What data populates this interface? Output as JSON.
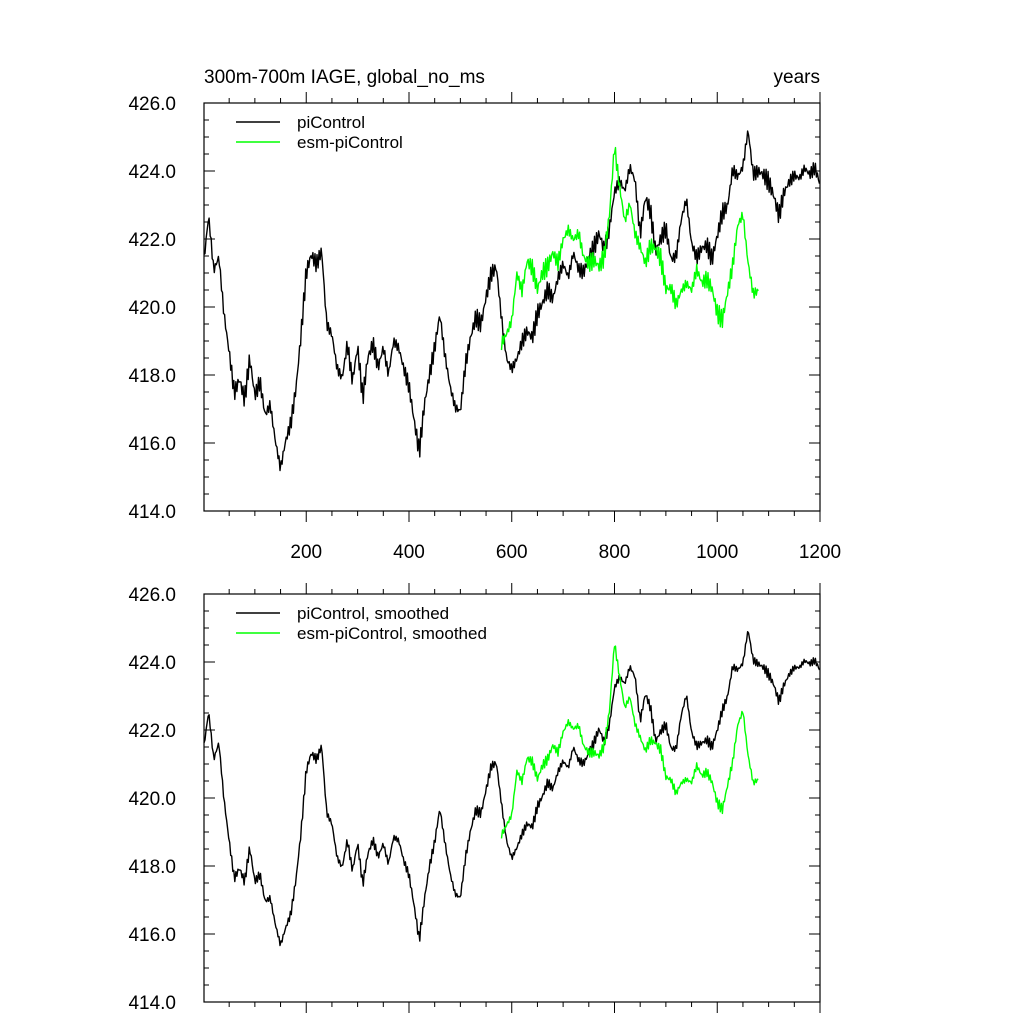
{
  "colors": {
    "background": "#ffffff",
    "axes": "#000000",
    "piControl": "#000000",
    "esm_piControl": "#00ff00"
  },
  "chart_data": [
    {
      "type": "line",
      "title": "300m-700m IAGE, global_no_ms",
      "right_title": "years",
      "xlim": [
        1,
        1200
      ],
      "ylim": [
        414.0,
        426.0
      ],
      "xticks": [
        200,
        400,
        600,
        800,
        1000,
        1200
      ],
      "xtick_labels": [
        "200",
        "400",
        "600",
        "800",
        "1000",
        "1200"
      ],
      "yticks": [
        414,
        416,
        418,
        420,
        422,
        424,
        426
      ],
      "ytick_labels": [
        "414.0",
        "416.0",
        "418.0",
        "420.0",
        "422.0",
        "424.0",
        "426.0"
      ],
      "grid": false,
      "legend": "top-left",
      "series": [
        {
          "name": "piControl",
          "color": "#000000",
          "x": [
            1,
            10,
            20,
            30,
            40,
            50,
            60,
            70,
            80,
            90,
            100,
            110,
            120,
            130,
            140,
            150,
            160,
            170,
            180,
            190,
            200,
            210,
            220,
            230,
            240,
            250,
            260,
            270,
            280,
            290,
            300,
            310,
            320,
            330,
            340,
            350,
            360,
            370,
            380,
            390,
            400,
            410,
            420,
            430,
            440,
            450,
            460,
            470,
            480,
            490,
            500,
            510,
            520,
            530,
            540,
            550,
            560,
            570,
            580,
            590,
            600,
            610,
            620,
            630,
            640,
            650,
            660,
            670,
            680,
            690,
            700,
            710,
            720,
            730,
            740,
            750,
            760,
            770,
            780,
            790,
            800,
            810,
            820,
            830,
            840,
            850,
            860,
            870,
            880,
            890,
            900,
            910,
            920,
            930,
            940,
            950,
            960,
            970,
            980,
            990,
            1000,
            1010,
            1020,
            1030,
            1040,
            1050,
            1060,
            1070,
            1080,
            1090,
            1100,
            1110,
            1120,
            1130,
            1140,
            1150,
            1160,
            1170,
            1180,
            1190,
            1200
          ],
          "values": [
            421.5,
            422.8,
            421.2,
            421.6,
            419.9,
            418.8,
            417.6,
            418.0,
            417.4,
            418.6,
            417.5,
            417.9,
            416.9,
            417.2,
            416.1,
            415.3,
            416.1,
            416.6,
            417.6,
            419.2,
            421.0,
            421.5,
            421.2,
            421.6,
            419.4,
            419.1,
            418.1,
            417.8,
            418.8,
            417.7,
            418.7,
            417.2,
            418.4,
            418.8,
            418.1,
            418.7,
            417.9,
            418.9,
            418.7,
            418.1,
            417.6,
            416.6,
            415.7,
            417.1,
            418.0,
            418.8,
            419.8,
            418.6,
            417.7,
            417.1,
            417.0,
            418.4,
            419.2,
            419.8,
            419.6,
            420.4,
            421.1,
            421.3,
            419.8,
            418.6,
            418.3,
            418.6,
            419.1,
            419.4,
            419.2,
            419.9,
            420.2,
            420.6,
            420.3,
            420.9,
            421.3,
            420.9,
            421.6,
            421.1,
            421.0,
            421.4,
            421.7,
            422.1,
            421.6,
            422.2,
            423.3,
            423.6,
            423.3,
            424.0,
            423.6,
            422.0,
            423.1,
            422.7,
            421.5,
            421.9,
            422.2,
            421.3,
            421.4,
            422.5,
            423.1,
            421.8,
            421.4,
            421.7,
            421.8,
            421.4,
            422.1,
            422.8,
            423.0,
            424.1,
            423.9,
            424.2,
            425.3,
            424.0,
            424.1,
            424.0,
            423.8,
            423.4,
            422.8,
            423.5,
            423.8,
            424.0,
            423.9,
            424.2,
            424.0,
            424.2,
            423.7
          ]
        },
        {
          "name": "esm-piControl",
          "color": "#00ff00",
          "x": [
            580,
            590,
            600,
            610,
            620,
            630,
            640,
            650,
            660,
            670,
            680,
            690,
            700,
            710,
            720,
            730,
            740,
            750,
            760,
            770,
            780,
            790,
            800,
            810,
            820,
            830,
            840,
            850,
            860,
            870,
            880,
            890,
            900,
            910,
            920,
            930,
            940,
            950,
            960,
            970,
            980,
            990,
            1000,
            1010,
            1020,
            1030,
            1040,
            1050,
            1060,
            1070,
            1080
          ],
          "values": [
            418.9,
            419.2,
            419.6,
            421.0,
            420.5,
            421.4,
            421.2,
            420.6,
            421.1,
            421.3,
            421.7,
            421.4,
            422.1,
            422.4,
            422.1,
            422.3,
            421.6,
            421.4,
            421.5,
            421.3,
            421.6,
            422.8,
            424.8,
            423.6,
            422.6,
            423.1,
            422.2,
            421.8,
            421.3,
            421.8,
            421.7,
            421.4,
            420.5,
            420.5,
            420.0,
            420.4,
            420.6,
            420.4,
            421.0,
            420.6,
            420.7,
            420.4,
            419.7,
            419.5,
            420.3,
            421.1,
            422.3,
            422.6,
            421.2,
            420.3,
            420.4
          ]
        }
      ]
    },
    {
      "type": "line",
      "title": "",
      "xlim": [
        1,
        1200
      ],
      "ylim": [
        414.0,
        426.0
      ],
      "xticks": [
        200,
        400,
        600,
        800,
        1000,
        1200
      ],
      "yticks": [
        414,
        416,
        418,
        420,
        422,
        424,
        426
      ],
      "ytick_labels": [
        "414.0",
        "416.0",
        "418.0",
        "420.0",
        "422.0",
        "424.0",
        "426.0"
      ],
      "grid": false,
      "legend": "top-left",
      "series": [
        {
          "name": "piControl, smoothed",
          "color": "#000000",
          "x": [
            1,
            10,
            20,
            30,
            40,
            50,
            60,
            70,
            80,
            90,
            100,
            110,
            120,
            130,
            140,
            150,
            160,
            170,
            180,
            190,
            200,
            210,
            220,
            230,
            240,
            250,
            260,
            270,
            280,
            290,
            300,
            310,
            320,
            330,
            340,
            350,
            360,
            370,
            380,
            390,
            400,
            410,
            420,
            430,
            440,
            450,
            460,
            470,
            480,
            490,
            500,
            510,
            520,
            530,
            540,
            550,
            560,
            570,
            580,
            590,
            600,
            610,
            620,
            630,
            640,
            650,
            660,
            670,
            680,
            690,
            700,
            710,
            720,
            730,
            740,
            750,
            760,
            770,
            780,
            790,
            800,
            810,
            820,
            830,
            840,
            850,
            860,
            870,
            880,
            890,
            900,
            910,
            920,
            930,
            940,
            950,
            960,
            970,
            980,
            990,
            1000,
            1010,
            1020,
            1030,
            1040,
            1050,
            1060,
            1070,
            1080,
            1090,
            1100,
            1110,
            1120,
            1130,
            1140,
            1150,
            1160,
            1170,
            1180,
            1190,
            1200
          ],
          "values": [
            421.6,
            422.6,
            421.2,
            421.7,
            420.0,
            418.8,
            417.7,
            418.0,
            417.6,
            418.6,
            417.6,
            417.8,
            417.0,
            417.1,
            416.3,
            415.7,
            416.2,
            416.6,
            417.6,
            419.0,
            420.8,
            421.3,
            421.1,
            421.5,
            419.5,
            419.2,
            418.2,
            417.9,
            418.7,
            417.8,
            418.6,
            417.4,
            418.3,
            418.7,
            418.2,
            418.6,
            418.0,
            418.8,
            418.7,
            418.1,
            417.7,
            416.8,
            415.8,
            417.0,
            418.0,
            418.7,
            419.7,
            418.7,
            417.8,
            417.2,
            417.1,
            418.3,
            419.1,
            419.7,
            419.6,
            420.3,
            421.0,
            421.1,
            419.9,
            418.8,
            418.3,
            418.6,
            419.0,
            419.3,
            419.2,
            419.8,
            420.1,
            420.5,
            420.3,
            420.8,
            421.1,
            420.9,
            421.5,
            421.1,
            421.0,
            421.3,
            421.6,
            422.0,
            421.6,
            422.1,
            423.2,
            423.5,
            423.3,
            423.8,
            423.5,
            422.2,
            423.0,
            422.6,
            421.6,
            421.9,
            422.1,
            421.4,
            421.4,
            422.4,
            423.0,
            421.9,
            421.5,
            421.6,
            421.7,
            421.5,
            422.0,
            422.6,
            423.0,
            423.9,
            423.8,
            424.0,
            425.0,
            424.1,
            424.0,
            423.9,
            423.7,
            423.4,
            422.9,
            423.4,
            423.7,
            423.9,
            423.9,
            424.1,
            424.0,
            424.1,
            423.8
          ]
        },
        {
          "name": "esm-piControl, smoothed",
          "color": "#00ff00",
          "x": [
            580,
            590,
            600,
            610,
            620,
            630,
            640,
            650,
            660,
            670,
            680,
            690,
            700,
            710,
            720,
            730,
            740,
            750,
            760,
            770,
            780,
            790,
            800,
            810,
            820,
            830,
            840,
            850,
            860,
            870,
            880,
            890,
            900,
            910,
            920,
            930,
            940,
            950,
            960,
            970,
            980,
            990,
            1000,
            1010,
            1020,
            1030,
            1040,
            1050,
            1060,
            1070,
            1080
          ],
          "values": [
            418.9,
            419.2,
            419.5,
            420.8,
            420.5,
            421.2,
            421.1,
            420.6,
            421.0,
            421.2,
            421.6,
            421.4,
            422.0,
            422.3,
            422.1,
            422.2,
            421.6,
            421.4,
            421.4,
            421.3,
            421.6,
            422.6,
            424.6,
            423.6,
            422.7,
            423.0,
            422.2,
            421.8,
            421.4,
            421.7,
            421.6,
            421.4,
            420.6,
            420.5,
            420.1,
            420.4,
            420.5,
            420.4,
            420.9,
            420.6,
            420.7,
            420.4,
            419.8,
            419.6,
            420.3,
            421.0,
            422.1,
            422.5,
            421.2,
            420.4,
            420.5
          ]
        }
      ]
    }
  ]
}
